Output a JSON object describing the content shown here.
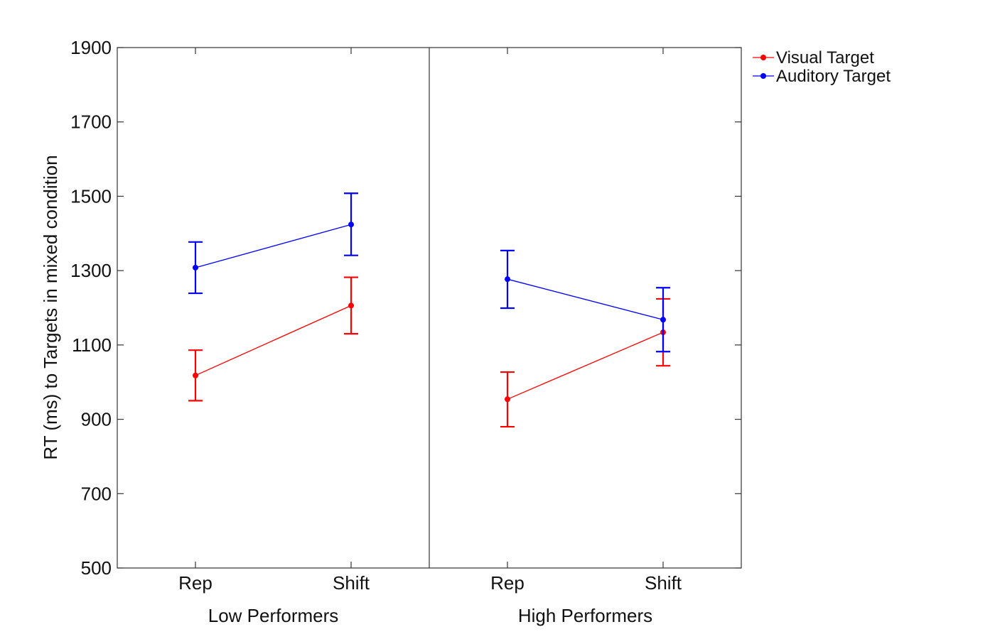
{
  "chart_data": {
    "type": "line",
    "ylabel": "RT (ms) to Targets in mixed condition",
    "ylim": [
      500,
      1900
    ],
    "yticks": [
      500,
      700,
      900,
      1100,
      1300,
      1500,
      1700,
      1900
    ],
    "grid": false,
    "legend_position": "top-right, outside plot",
    "panels": [
      {
        "label": "Low Performers",
        "categories": [
          "Rep",
          "Shift"
        ]
      },
      {
        "label": "High Performers",
        "categories": [
          "Rep",
          "Shift"
        ]
      }
    ],
    "series": [
      {
        "name": "Visual Target",
        "color": "#ff0000",
        "panels": [
          {
            "values": [
              1018,
              1206
            ],
            "lower": [
              950,
              1130
            ],
            "upper": [
              1086,
              1282
            ]
          },
          {
            "values": [
              954,
              1134
            ],
            "lower": [
              880,
              1044
            ],
            "upper": [
              1027,
              1224
            ]
          }
        ]
      },
      {
        "name": "Auditory Target",
        "color": "#0000ff",
        "panels": [
          {
            "values": [
              1308,
              1424
            ],
            "lower": [
              1239,
              1341
            ],
            "upper": [
              1377,
              1508
            ]
          },
          {
            "values": [
              1277,
              1168
            ],
            "lower": [
              1199,
              1082
            ],
            "upper": [
              1354,
              1254
            ]
          }
        ]
      }
    ]
  }
}
